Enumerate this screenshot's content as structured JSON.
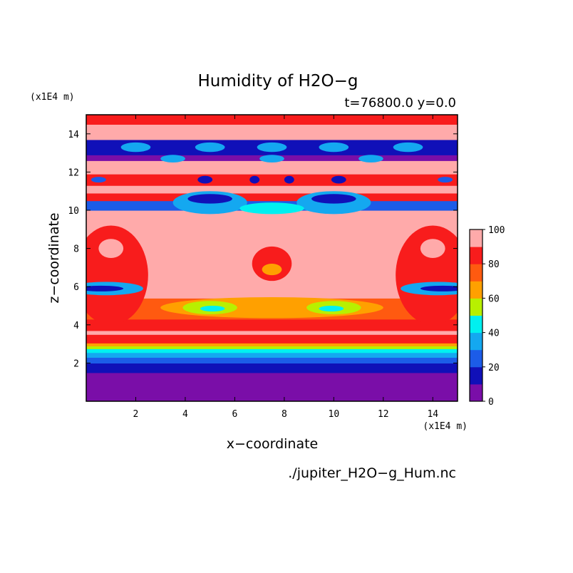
{
  "chart_data": {
    "type": "heatmap",
    "title": "Humidity of H2O−g",
    "subtitle": "t=76800.0 y=0.0",
    "xlabel": "x−coordinate",
    "ylabel": "z−coordinate",
    "x_unit": "(x1E4 m)",
    "y_unit": "(x1E4 m)",
    "source_file": "./jupiter_H2O−g_Hum.nc",
    "xlim": [
      0,
      15
    ],
    "ylim": [
      0,
      15
    ],
    "x_ticks": [
      2,
      4,
      6,
      8,
      10,
      12,
      14
    ],
    "y_ticks": [
      2,
      4,
      6,
      8,
      10,
      12,
      14
    ],
    "colorbar": {
      "levels": [
        0,
        10,
        20,
        30,
        40,
        50,
        60,
        70,
        80,
        90,
        100
      ],
      "tick_labels": [
        "0",
        "20",
        "40",
        "60",
        "80",
        "100"
      ],
      "tick_values": [
        0,
        20,
        40,
        60,
        80,
        100
      ],
      "colors": [
        "#7a0ea8",
        "#1010b8",
        "#1c5ce8",
        "#14a8f0",
        "#00f0f0",
        "#b8f000",
        "#ffa000",
        "#ff5a10",
        "#f81c1c",
        "#ffaaaa"
      ]
    },
    "layers": [
      {
        "z": [
          0.0,
          1.0
        ],
        "class": 0
      },
      {
        "z": [
          1.0,
          1.5
        ],
        "class": 0
      },
      {
        "z": [
          1.5,
          2.0
        ],
        "class": 1
      },
      {
        "z": [
          2.0,
          2.3
        ],
        "class": 2
      },
      {
        "z": [
          2.3,
          2.55
        ],
        "class": 3
      },
      {
        "z": [
          2.55,
          2.75
        ],
        "class": 4
      },
      {
        "z": [
          2.75,
          2.9
        ],
        "class": 5
      },
      {
        "z": [
          2.9,
          3.05
        ],
        "class": 6
      },
      {
        "z": [
          3.05,
          3.5
        ],
        "class": 8
      },
      {
        "z": [
          3.5,
          3.7
        ],
        "class": 9
      },
      {
        "z": [
          3.7,
          4.3
        ],
        "class": 8
      },
      {
        "z": [
          4.3,
          5.4
        ],
        "class": 7
      },
      {
        "z": [
          5.4,
          10.0
        ],
        "class": 9
      },
      {
        "z": [
          10.0,
          10.5
        ],
        "class": 2
      },
      {
        "z": [
          10.5,
          10.9
        ],
        "class": 8
      },
      {
        "z": [
          10.9,
          11.3
        ],
        "class": 9
      },
      {
        "z": [
          11.3,
          11.9
        ],
        "class": 8
      },
      {
        "z": [
          11.9,
          12.6
        ],
        "class": 9
      },
      {
        "z": [
          12.6,
          12.9
        ],
        "class": 0
      },
      {
        "z": [
          12.9,
          13.7
        ],
        "class": 1
      },
      {
        "z": [
          13.7,
          14.5
        ],
        "class": 9
      },
      {
        "z": [
          14.5,
          15.0
        ],
        "class": 8
      }
    ],
    "features": [
      {
        "x": 7.5,
        "z": 4.9,
        "rx": 4.5,
        "rz": 0.55,
        "class": 6
      },
      {
        "x": 5.0,
        "z": 4.9,
        "rx": 1.1,
        "rz": 0.35,
        "class": 5
      },
      {
        "x": 10.0,
        "z": 4.9,
        "rx": 1.1,
        "rz": 0.35,
        "class": 5
      },
      {
        "x": 5.1,
        "z": 4.85,
        "rx": 0.5,
        "rz": 0.15,
        "class": 4
      },
      {
        "x": 9.9,
        "z": 4.85,
        "rx": 0.5,
        "rz": 0.15,
        "class": 4
      },
      {
        "x": 1.0,
        "z": 6.6,
        "rx": 1.5,
        "rz": 2.6,
        "class": 8
      },
      {
        "x": 14.0,
        "z": 6.6,
        "rx": 1.5,
        "rz": 2.6,
        "class": 8
      },
      {
        "x": 0.8,
        "z": 5.9,
        "rx": 1.5,
        "rz": 0.35,
        "class": 3
      },
      {
        "x": 14.2,
        "z": 5.9,
        "rx": 1.5,
        "rz": 0.35,
        "class": 3
      },
      {
        "x": 0.6,
        "z": 5.9,
        "rx": 0.9,
        "rz": 0.15,
        "class": 1
      },
      {
        "x": 14.4,
        "z": 5.9,
        "rx": 0.9,
        "rz": 0.15,
        "class": 1
      },
      {
        "x": 1.0,
        "z": 8.0,
        "rx": 0.5,
        "rz": 0.5,
        "class": 9
      },
      {
        "x": 14.0,
        "z": 8.0,
        "rx": 0.5,
        "rz": 0.5,
        "class": 9
      },
      {
        "x": 7.5,
        "z": 7.2,
        "rx": 0.8,
        "rz": 0.9,
        "class": 8
      },
      {
        "x": 7.5,
        "z": 6.9,
        "rx": 0.4,
        "rz": 0.3,
        "class": 6
      },
      {
        "x": 5.0,
        "z": 10.4,
        "rx": 1.5,
        "rz": 0.6,
        "class": 3
      },
      {
        "x": 10.0,
        "z": 10.4,
        "rx": 1.5,
        "rz": 0.6,
        "class": 3
      },
      {
        "x": 5.0,
        "z": 10.6,
        "rx": 0.9,
        "rz": 0.25,
        "class": 1
      },
      {
        "x": 10.0,
        "z": 10.6,
        "rx": 0.9,
        "rz": 0.25,
        "class": 1
      },
      {
        "x": 7.5,
        "z": 10.1,
        "rx": 1.3,
        "rz": 0.3,
        "class": 4
      },
      {
        "x": 6.8,
        "z": 11.6,
        "rx": 0.2,
        "rz": 0.2,
        "class": 1
      },
      {
        "x": 8.2,
        "z": 11.6,
        "rx": 0.2,
        "rz": 0.2,
        "class": 1
      },
      {
        "x": 4.8,
        "z": 11.6,
        "rx": 0.3,
        "rz": 0.2,
        "class": 1
      },
      {
        "x": 10.2,
        "z": 11.6,
        "rx": 0.3,
        "rz": 0.2,
        "class": 1
      },
      {
        "x": 0.5,
        "z": 11.6,
        "rx": 0.3,
        "rz": 0.15,
        "class": 2
      },
      {
        "x": 14.5,
        "z": 11.6,
        "rx": 0.3,
        "rz": 0.15,
        "class": 2
      },
      {
        "x": 2.0,
        "z": 13.3,
        "rx": 0.6,
        "rz": 0.25,
        "class": 3
      },
      {
        "x": 5.0,
        "z": 13.3,
        "rx": 0.6,
        "rz": 0.25,
        "class": 3
      },
      {
        "x": 7.5,
        "z": 13.3,
        "rx": 0.6,
        "rz": 0.25,
        "class": 3
      },
      {
        "x": 10.0,
        "z": 13.3,
        "rx": 0.6,
        "rz": 0.25,
        "class": 3
      },
      {
        "x": 13.0,
        "z": 13.3,
        "rx": 0.6,
        "rz": 0.25,
        "class": 3
      },
      {
        "x": 3.5,
        "z": 12.7,
        "rx": 0.5,
        "rz": 0.2,
        "class": 3
      },
      {
        "x": 11.5,
        "z": 12.7,
        "rx": 0.5,
        "rz": 0.2,
        "class": 3
      },
      {
        "x": 7.5,
        "z": 12.7,
        "rx": 0.5,
        "rz": 0.2,
        "class": 3
      }
    ]
  }
}
